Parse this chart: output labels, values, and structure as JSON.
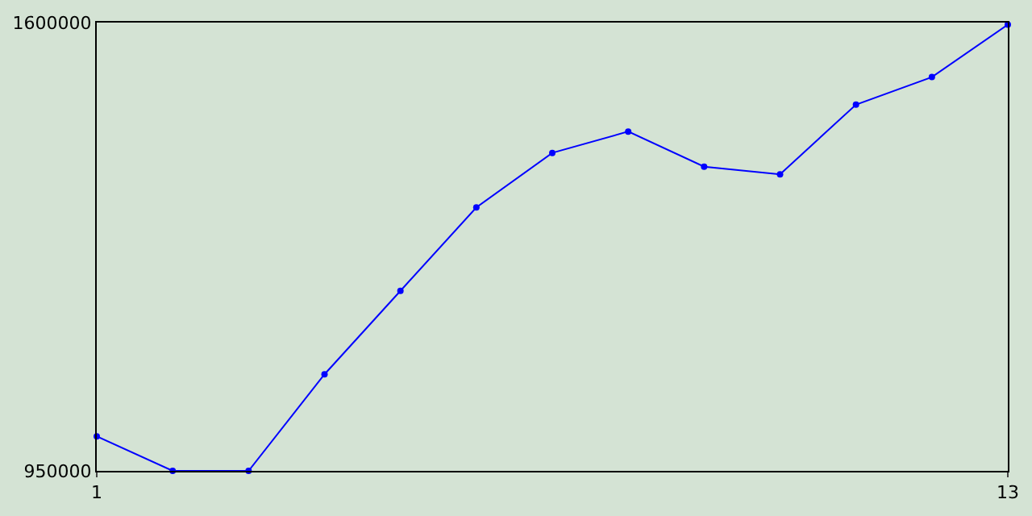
{
  "chart_data": {
    "type": "line",
    "x": [
      1,
      2,
      3,
      4,
      5,
      6,
      7,
      8,
      9,
      10,
      11,
      12,
      13
    ],
    "series": [
      {
        "color": "#0000ff",
        "values": [
          1000000,
          950000,
          950000,
          1090000,
          1211000,
          1332000,
          1411000,
          1442000,
          1391000,
          1380000,
          1481000,
          1521000,
          1597000
        ]
      }
    ],
    "xlim": [
      1,
      13
    ],
    "xticks": [
      1,
      13
    ],
    "ylim": [
      950000,
      1600000
    ],
    "yticks": [
      950000,
      1600000
    ],
    "legend": false,
    "marker": "circle",
    "line_style": "solid"
  }
}
